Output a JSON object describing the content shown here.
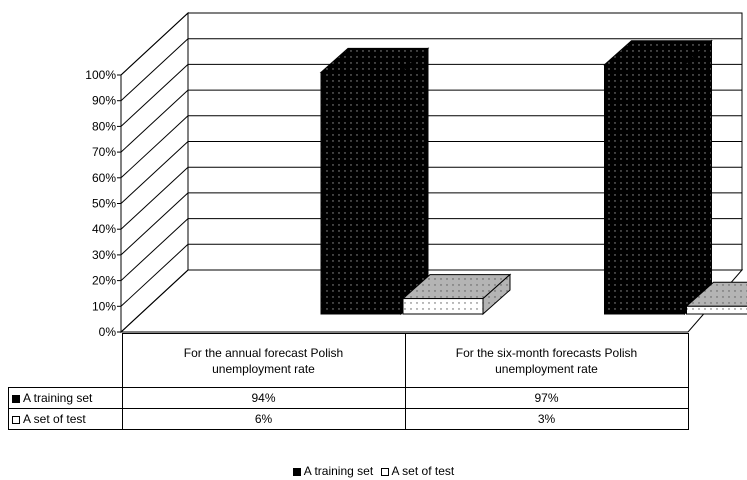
{
  "chart_data": {
    "type": "bar",
    "categories": [
      "For the annual forecast Polish unemployment rate",
      "For the six-month forecasts Polish unemployment rate"
    ],
    "category_lines": [
      [
        "For the annual forecast Polish",
        "unemployment rate"
      ],
      [
        "For the six-month forecasts Polish",
        "unemployment rate"
      ]
    ],
    "series": [
      {
        "name": "A training set",
        "values": [
          94,
          97
        ],
        "value_labels": [
          "94%",
          "97%"
        ],
        "color": "#000000"
      },
      {
        "name": "A set of test",
        "values": [
          6,
          3
        ],
        "value_labels": [
          "6%",
          "3%"
        ],
        "color": "#ffffff"
      }
    ],
    "ylim": [
      0,
      100
    ],
    "yticks": [
      "0%",
      "10%",
      "20%",
      "30%",
      "40%",
      "50%",
      "60%",
      "70%",
      "80%",
      "90%",
      "100%"
    ],
    "grid": true,
    "three_d": true,
    "legend_position": "bottom",
    "data_table": true
  }
}
